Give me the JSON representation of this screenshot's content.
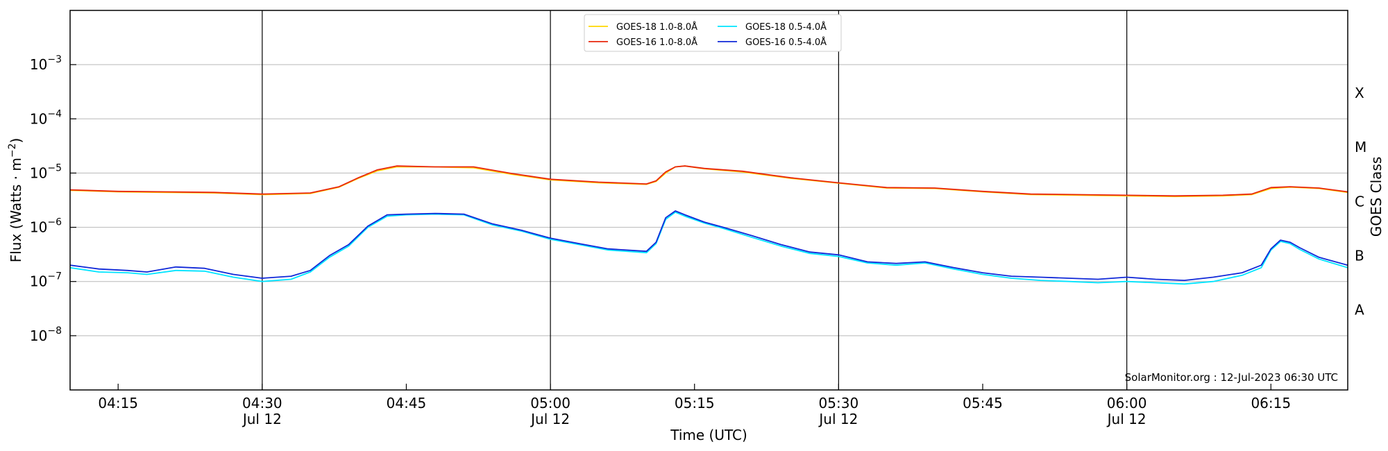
{
  "chart_data": {
    "type": "line",
    "xlabel": "Time (UTC)",
    "ylabel_main": "Flux (Watts · m",
    "ylabel_sup": "−2",
    "ylabel_close": ")",
    "right_ylabel": "GOES Class",
    "credit": "SolarMonitor.org : 12-Jul-2023 06:30 UTC",
    "y_scale": "log",
    "ylim": [
      1e-09,
      0.01
    ],
    "xlim": [
      "04:10",
      "06:23"
    ],
    "grid": "horizontal at decades",
    "legend_position": "top-center",
    "x_ticks": [
      {
        "t": "04:15",
        "label": "04:15",
        "sub": ""
      },
      {
        "t": "04:30",
        "label": "04:30",
        "sub": "Jul 12"
      },
      {
        "t": "04:45",
        "label": "04:45",
        "sub": ""
      },
      {
        "t": "05:00",
        "label": "05:00",
        "sub": "Jul 12"
      },
      {
        "t": "05:15",
        "label": "05:15",
        "sub": ""
      },
      {
        "t": "05:30",
        "label": "05:30",
        "sub": "Jul 12"
      },
      {
        "t": "05:45",
        "label": "05:45",
        "sub": ""
      },
      {
        "t": "06:00",
        "label": "06:00",
        "sub": "Jul 12"
      },
      {
        "t": "06:15",
        "label": "06:15",
        "sub": ""
      }
    ],
    "vertical_lines": [
      "04:30",
      "05:00",
      "05:30",
      "06:00"
    ],
    "y_ticks": [
      {
        "value": 1e-08,
        "base": "10",
        "exp": "−8"
      },
      {
        "value": 1e-07,
        "base": "10",
        "exp": "−7"
      },
      {
        "value": 1e-06,
        "base": "10",
        "exp": "−6"
      },
      {
        "value": 1e-05,
        "base": "10",
        "exp": "−5"
      },
      {
        "value": 0.0001,
        "base": "10",
        "exp": "−4"
      },
      {
        "value": 0.001,
        "base": "10",
        "exp": "−3"
      }
    ],
    "goes_classes": [
      {
        "label": "A",
        "value": 3e-08
      },
      {
        "label": "B",
        "value": 3e-07
      },
      {
        "label": "C",
        "value": 3e-06
      },
      {
        "label": "M",
        "value": 3e-05
      },
      {
        "label": "X",
        "value": 0.0003
      }
    ],
    "series": [
      {
        "name": "GOES-18 1.0-8.0Å",
        "color": "#ffd700",
        "x": [
          "04:10",
          "04:15",
          "04:20",
          "04:25",
          "04:30",
          "04:35",
          "04:38",
          "04:40",
          "04:42",
          "04:44",
          "04:48",
          "04:52",
          "04:56",
          "05:00",
          "05:05",
          "05:10",
          "05:11",
          "05:12",
          "05:13",
          "05:14",
          "05:16",
          "05:20",
          "05:25",
          "05:30",
          "05:35",
          "05:40",
          "05:45",
          "05:50",
          "05:55",
          "06:00",
          "06:05",
          "06:10",
          "06:13",
          "06:15",
          "06:17",
          "06:20",
          "06:23"
        ],
        "y": [
          4.8e-06,
          4.5e-06,
          4.4e-06,
          4.3e-06,
          4e-06,
          4.2e-06,
          5.5e-06,
          8e-06,
          1.1e-05,
          1.3e-05,
          1.3e-05,
          1.25e-05,
          9.5e-06,
          7.5e-06,
          6.6e-06,
          6.2e-06,
          7e-06,
          1e-05,
          1.3e-05,
          1.35e-05,
          1.2e-05,
          1.05e-05,
          8e-06,
          6.5e-06,
          5.3e-06,
          5.2e-06,
          4.5e-06,
          4e-06,
          3.9e-06,
          3.8e-06,
          3.7e-06,
          3.8e-06,
          4e-06,
          5.2e-06,
          5.5e-06,
          5.2e-06,
          4.4e-06
        ]
      },
      {
        "name": "GOES-16 1.0-8.0Å",
        "color": "#e8260c",
        "x": [
          "04:10",
          "04:15",
          "04:20",
          "04:25",
          "04:30",
          "04:35",
          "04:38",
          "04:40",
          "04:42",
          "04:44",
          "04:48",
          "04:52",
          "04:56",
          "05:00",
          "05:05",
          "05:10",
          "05:11",
          "05:12",
          "05:13",
          "05:14",
          "05:16",
          "05:20",
          "05:25",
          "05:30",
          "05:35",
          "05:40",
          "05:45",
          "05:50",
          "05:55",
          "06:00",
          "06:05",
          "06:10",
          "06:13",
          "06:15",
          "06:17",
          "06:20",
          "06:23"
        ],
        "y": [
          4.9e-06,
          4.6e-06,
          4.5e-06,
          4.4e-06,
          4.1e-06,
          4.3e-06,
          5.6e-06,
          8.2e-06,
          1.15e-05,
          1.35e-05,
          1.3e-05,
          1.3e-05,
          9.8e-06,
          7.7e-06,
          6.8e-06,
          6.3e-06,
          7.2e-06,
          1.05e-05,
          1.3e-05,
          1.35e-05,
          1.22e-05,
          1.08e-05,
          8.2e-06,
          6.6e-06,
          5.4e-06,
          5.3e-06,
          4.6e-06,
          4.1e-06,
          4e-06,
          3.9e-06,
          3.8e-06,
          3.9e-06,
          4.1e-06,
          5.4e-06,
          5.6e-06,
          5.3e-06,
          4.5e-06
        ]
      },
      {
        "name": "GOES-18 0.5-4.0Å",
        "color": "#00e5ff",
        "x": [
          "04:10",
          "04:13",
          "04:16",
          "04:18",
          "04:21",
          "04:24",
          "04:27",
          "04:30",
          "04:33",
          "04:35",
          "04:37",
          "04:39",
          "04:41",
          "04:43",
          "04:45",
          "04:48",
          "04:51",
          "04:54",
          "04:57",
          "05:00",
          "05:03",
          "05:06",
          "05:10",
          "05:11",
          "05:12",
          "05:13",
          "05:14",
          "05:16",
          "05:18",
          "05:21",
          "05:24",
          "05:27",
          "05:30",
          "05:33",
          "05:36",
          "05:39",
          "05:42",
          "05:45",
          "05:48",
          "05:51",
          "05:54",
          "05:57",
          "06:00",
          "06:03",
          "06:06",
          "06:09",
          "06:12",
          "06:14",
          "06:15",
          "06:16",
          "06:17",
          "06:18",
          "06:20",
          "06:23"
        ],
        "y": [
          1.8e-07,
          1.5e-07,
          1.45e-07,
          1.35e-07,
          1.6e-07,
          1.55e-07,
          1.2e-07,
          1e-07,
          1.1e-07,
          1.5e-07,
          2.8e-07,
          4.5e-07,
          1e-06,
          1.6e-06,
          1.7e-06,
          1.75e-06,
          1.7e-06,
          1.1e-06,
          8.5e-07,
          6e-07,
          4.8e-07,
          3.8e-07,
          3.4e-07,
          5e-07,
          1.4e-06,
          1.9e-06,
          1.6e-06,
          1.2e-06,
          9.5e-07,
          6.5e-07,
          4.5e-07,
          3.3e-07,
          2.9e-07,
          2.2e-07,
          2e-07,
          2.2e-07,
          1.7e-07,
          1.35e-07,
          1.15e-07,
          1.05e-07,
          1e-07,
          9.5e-08,
          1e-07,
          9.5e-08,
          9e-08,
          1e-07,
          1.3e-07,
          1.8e-07,
          3.8e-07,
          5.5e-07,
          5e-07,
          3.9e-07,
          2.6e-07,
          1.8e-07
        ]
      },
      {
        "name": "GOES-16 0.5-4.0Å",
        "color": "#1028d8",
        "x": [
          "04:10",
          "04:13",
          "04:16",
          "04:18",
          "04:21",
          "04:24",
          "04:27",
          "04:30",
          "04:33",
          "04:35",
          "04:37",
          "04:39",
          "04:41",
          "04:43",
          "04:45",
          "04:48",
          "04:51",
          "04:54",
          "04:57",
          "05:00",
          "05:03",
          "05:06",
          "05:10",
          "05:11",
          "05:12",
          "05:13",
          "05:14",
          "05:16",
          "05:18",
          "05:21",
          "05:24",
          "05:27",
          "05:30",
          "05:33",
          "05:36",
          "05:39",
          "05:42",
          "05:45",
          "05:48",
          "05:51",
          "05:54",
          "05:57",
          "06:00",
          "06:03",
          "06:06",
          "06:09",
          "06:12",
          "06:14",
          "06:15",
          "06:16",
          "06:17",
          "06:18",
          "06:20",
          "06:23"
        ],
        "y": [
          2e-07,
          1.7e-07,
          1.6e-07,
          1.5e-07,
          1.85e-07,
          1.75e-07,
          1.35e-07,
          1.15e-07,
          1.25e-07,
          1.6e-07,
          3e-07,
          4.8e-07,
          1.05e-06,
          1.7e-06,
          1.75e-06,
          1.8e-06,
          1.75e-06,
          1.15e-06,
          8.8e-07,
          6.3e-07,
          5e-07,
          4e-07,
          3.6e-07,
          5.3e-07,
          1.5e-06,
          2e-06,
          1.7e-06,
          1.25e-06,
          1e-06,
          7e-07,
          4.8e-07,
          3.5e-07,
          3.1e-07,
          2.3e-07,
          2.15e-07,
          2.3e-07,
          1.8e-07,
          1.45e-07,
          1.25e-07,
          1.2e-07,
          1.15e-07,
          1.1e-07,
          1.2e-07,
          1.1e-07,
          1.05e-07,
          1.2e-07,
          1.45e-07,
          2e-07,
          4e-07,
          5.8e-07,
          5.3e-07,
          4.2e-07,
          2.8e-07,
          2e-07
        ]
      }
    ]
  }
}
